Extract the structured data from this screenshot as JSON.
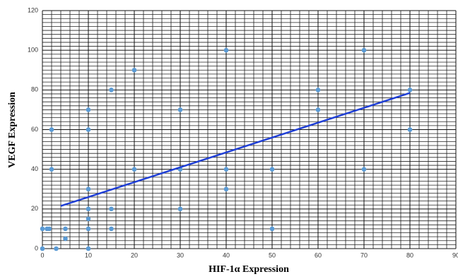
{
  "chart_data": {
    "type": "scatter",
    "x_label": "HIF-1α Expression",
    "y_label": "VEGF Expression",
    "xlim": [
      0,
      90
    ],
    "ylim": [
      0,
      120
    ],
    "xticks": [
      0,
      10,
      20,
      30,
      40,
      50,
      60,
      70,
      80,
      90
    ],
    "yticks": [
      0,
      20,
      40,
      60,
      80,
      100,
      120
    ],
    "grid": true,
    "series": [
      {
        "color": "#5b9bd5",
        "x": [
          0,
          0,
          1,
          1.5,
          2,
          2,
          3,
          5,
          5,
          10,
          10,
          10,
          10,
          10,
          10,
          10,
          15,
          15,
          15,
          20,
          20,
          30,
          30,
          30,
          40,
          40,
          40,
          50,
          50,
          60,
          60,
          70,
          70,
          80,
          80
        ],
        "values": [
          0,
          10,
          10,
          10,
          60,
          40,
          0,
          10,
          5,
          70,
          60,
          30,
          20,
          15,
          10,
          0,
          80,
          20,
          10,
          90,
          40,
          70,
          40,
          20,
          100,
          40,
          30,
          40,
          10,
          80,
          70,
          100,
          40,
          80,
          60
        ]
      }
    ],
    "trendline": {
      "color": "#1f3fd6",
      "x": [
        4,
        80
      ],
      "values": [
        21.5,
        78.5
      ]
    }
  }
}
